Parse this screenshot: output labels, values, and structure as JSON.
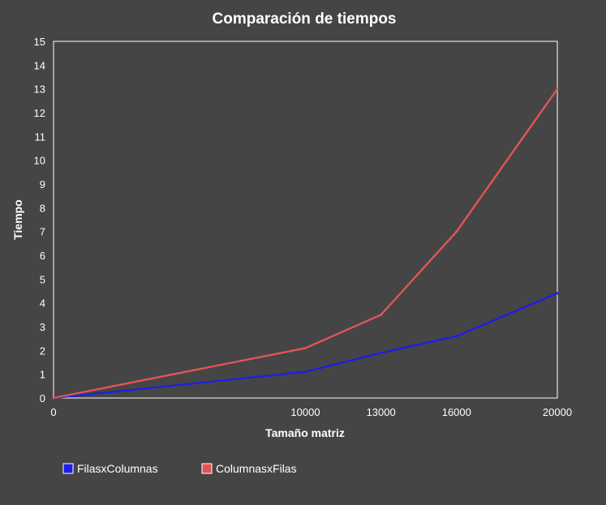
{
  "chart_data": {
    "type": "line",
    "title": "Comparación de tiempos",
    "xlabel": "Tamaño matriz",
    "ylabel": "Tiempo",
    "x": [
      0,
      10000,
      13000,
      16000,
      20000
    ],
    "x_tick_labels": [
      "0",
      "10000",
      "13000",
      "16000",
      "20000"
    ],
    "ylim": [
      0,
      15
    ],
    "y_ticks": [
      0,
      1,
      2,
      3,
      4,
      5,
      6,
      7,
      8,
      9,
      10,
      11,
      12,
      13,
      14,
      15
    ],
    "grid": false,
    "legend_position": "bottom-left",
    "series": [
      {
        "name": "FilasxColumnas",
        "color": "#1f1fe0",
        "values": [
          0,
          1.1,
          1.9,
          2.6,
          4.4
        ]
      },
      {
        "name": "ColumnasxFilas",
        "color": "#e05555",
        "values": [
          0,
          2.1,
          3.5,
          7.0,
          13.0
        ]
      }
    ]
  },
  "colors": {
    "background": "#454545",
    "plot_border": "#ffffff",
    "text": "#ffffff"
  }
}
